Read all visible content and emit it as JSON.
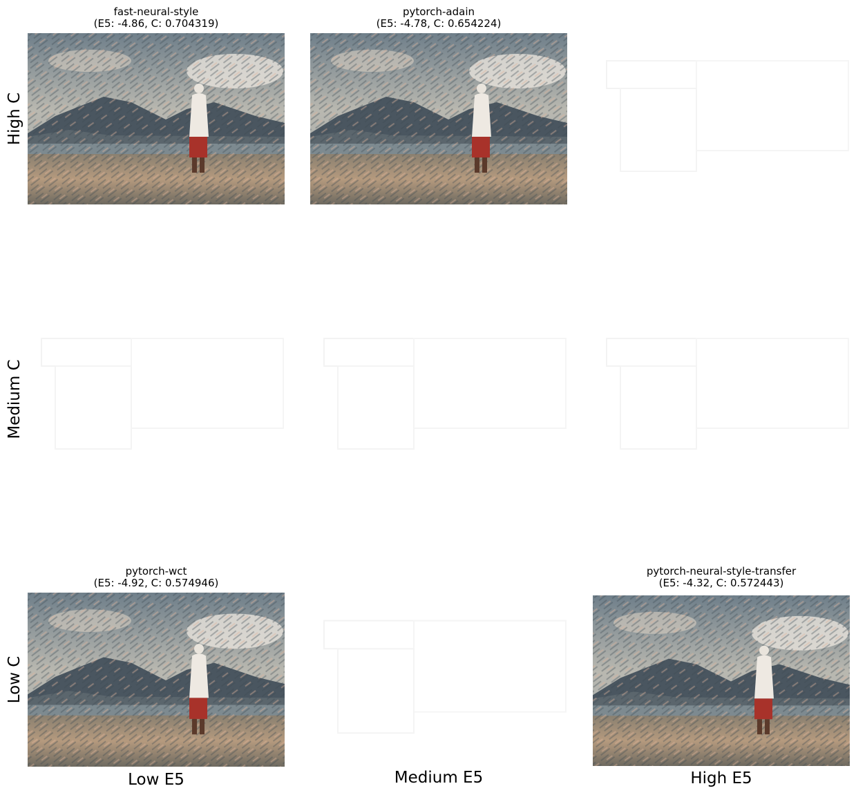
{
  "row_labels": [
    "High C",
    "Medium C",
    "Low C"
  ],
  "col_labels": [
    "Low E5",
    "Medium E5",
    "High E5"
  ],
  "panels": [
    {
      "title": "fast-neural-style",
      "subtitle": "(E5: -4.86, C: 0.704319)"
    },
    {
      "title": "pytorch-adain",
      "subtitle": "(E5: -4.78, C: 0.654224)"
    },
    {
      "title": "pytorch-wct",
      "subtitle": "(E5: -4.92, C: 0.574946)"
    },
    {
      "title": "pytorch-neural-style-transfer",
      "subtitle": "(E5: -4.32, C: 0.572443)"
    }
  ]
}
